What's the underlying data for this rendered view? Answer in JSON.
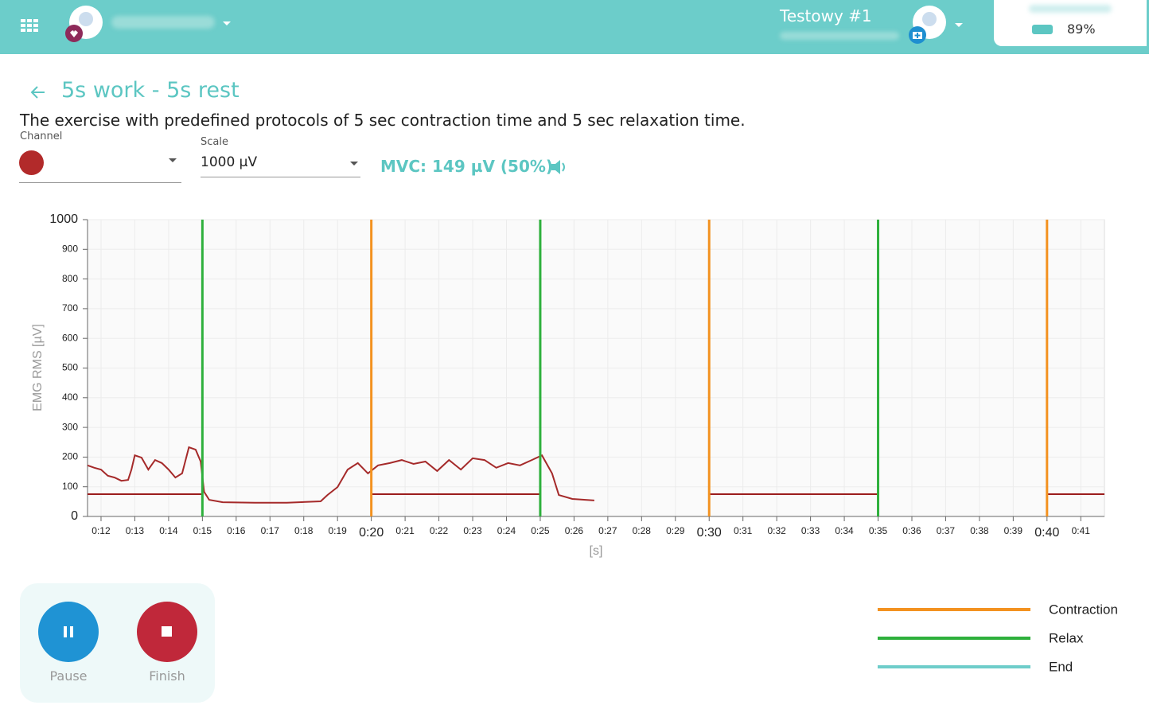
{
  "header": {
    "device": "Testowy #1",
    "battery": "89%"
  },
  "exercise": {
    "title": "5s work - 5s rest",
    "description": "The exercise with predefined protocols of 5 sec contraction time and 5 sec relaxation time.",
    "channel_label": "Channel",
    "scale_label": "Scale",
    "scale_value": "1000 µV",
    "mvc": "MVC: 149 µV (50%)"
  },
  "chart_data": {
    "type": "line",
    "y_label": "EMG RMS [µV]",
    "x_label": "[s]",
    "xlim": [
      11.6,
      41.7
    ],
    "ylim": [
      0,
      1000
    ],
    "grid": true,
    "xticks": [
      {
        "value": 12,
        "label": "0:12"
      },
      {
        "value": 13,
        "label": "0:13"
      },
      {
        "value": 14,
        "label": "0:14"
      },
      {
        "value": 15,
        "label": "0:15"
      },
      {
        "value": 16,
        "label": "0:16"
      },
      {
        "value": 17,
        "label": "0:17"
      },
      {
        "value": 18,
        "label": "0:18"
      },
      {
        "value": 19,
        "label": "0:19"
      },
      {
        "value": 20,
        "label": "0:20"
      },
      {
        "value": 21,
        "label": "0:21"
      },
      {
        "value": 22,
        "label": "0:22"
      },
      {
        "value": 23,
        "label": "0:23"
      },
      {
        "value": 24,
        "label": "0:24"
      },
      {
        "value": 25,
        "label": "0:25"
      },
      {
        "value": 26,
        "label": "0:26"
      },
      {
        "value": 27,
        "label": "0:27"
      },
      {
        "value": 28,
        "label": "0:28"
      },
      {
        "value": 29,
        "label": "0:29"
      },
      {
        "value": 30,
        "label": "0:30"
      },
      {
        "value": 31,
        "label": "0:31"
      },
      {
        "value": 32,
        "label": "0:32"
      },
      {
        "value": 33,
        "label": "0:33"
      },
      {
        "value": 34,
        "label": "0:34"
      },
      {
        "value": 35,
        "label": "0:35"
      },
      {
        "value": 36,
        "label": "0:36"
      },
      {
        "value": 37,
        "label": "0:37"
      },
      {
        "value": 38,
        "label": "0:38"
      },
      {
        "value": 39,
        "label": "0:39"
      },
      {
        "value": 40,
        "label": "0:40"
      },
      {
        "value": 41,
        "label": "0:41"
      }
    ],
    "yticks": [
      0,
      100,
      200,
      300,
      400,
      500,
      600,
      700,
      800,
      900,
      1000
    ],
    "series": [
      {
        "color": "#a52a2a",
        "x": [
          11.6,
          11.8,
          12.0,
          12.2,
          12.4,
          12.6,
          12.8,
          12.9,
          13.0,
          13.2,
          13.4,
          13.6,
          13.8,
          14.0,
          14.2,
          14.4,
          14.6,
          14.8,
          14.95,
          15.05,
          15.2,
          15.6,
          16.55,
          17.5,
          18.5,
          18.7,
          19.0,
          19.3,
          19.6,
          19.9,
          20.2,
          20.55,
          20.9,
          21.25,
          21.6,
          21.95,
          22.3,
          22.65,
          23.0,
          23.35,
          23.7,
          24.05,
          24.4,
          24.75,
          25.05,
          25.35,
          25.55,
          25.95,
          26.6
        ],
        "values": [
          172,
          164,
          158,
          137,
          131,
          120,
          123,
          158,
          206,
          198,
          158,
          190,
          180,
          158,
          131,
          145,
          233,
          225,
          185,
          83,
          56,
          48,
          46,
          46,
          51,
          72,
          99,
          158,
          180,
          145,
          172,
          180,
          190,
          177,
          185,
          153,
          190,
          158,
          196,
          190,
          164,
          180,
          172,
          190,
          206,
          145,
          72,
          59,
          54
        ]
      },
      {
        "color": "#9b1c1c",
        "x": [
          11.6,
          15,
          17.5,
          20,
          25,
          27.5,
          30,
          35,
          37.5,
          40,
          41.7
        ],
        "values": [
          75,
          75,
          null,
          75,
          75,
          null,
          75,
          75,
          null,
          75,
          75
        ]
      }
    ],
    "legend": [
      {
        "name": "Contraction",
        "color": "#f39220",
        "x": [
          20,
          30,
          40
        ]
      },
      {
        "name": "Relax",
        "color": "#2eb03c",
        "x": [
          15,
          25,
          35
        ]
      },
      {
        "name": "End",
        "color": "#6ecdca",
        "x": []
      }
    ]
  },
  "controls": {
    "pause": "Pause",
    "finish": "Finish"
  }
}
